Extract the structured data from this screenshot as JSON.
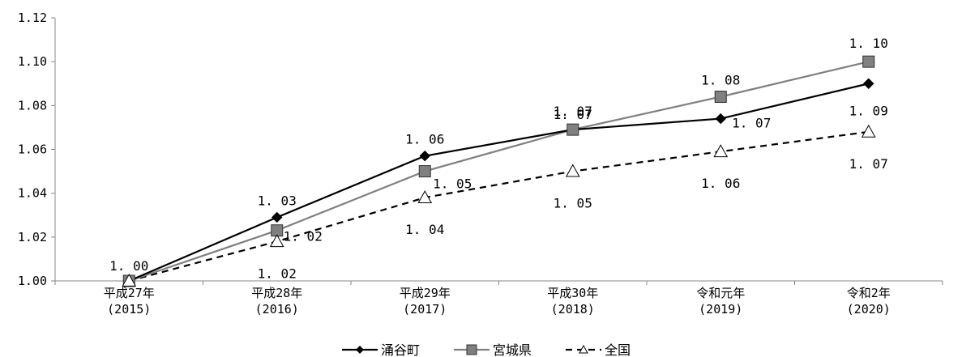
{
  "chart_data": {
    "type": "line",
    "title": "",
    "xlabel": "",
    "ylabel": "",
    "ylim": [
      1.0,
      1.12
    ],
    "yticks": [
      "1.00",
      "1.02",
      "1.04",
      "1.06",
      "1.08",
      "1.10",
      "1.12"
    ],
    "grid": false,
    "legend_position": "bottom",
    "categories": [
      {
        "line1": "平成27年",
        "line2": "(2015)"
      },
      {
        "line1": "平成28年",
        "line2": "(2016)"
      },
      {
        "line1": "平成29年",
        "line2": "(2017)"
      },
      {
        "line1": "平成30年",
        "line2": "(2018)"
      },
      {
        "line1": "令和元年",
        "line2": "(2019)"
      },
      {
        "line1": "令和2年",
        "line2": "(2020)"
      }
    ],
    "series": [
      {
        "name": "涌谷町",
        "values": [
          1.0,
          1.029,
          1.057,
          1.069,
          1.074,
          1.09
        ],
        "labels": [
          "1.00",
          "1.03",
          "1.06",
          "1.07",
          "1.07",
          "1.09"
        ],
        "color": "#000000",
        "dash": "solid",
        "marker": "diamond"
      },
      {
        "name": "宮城県",
        "values": [
          1.0,
          1.023,
          1.05,
          1.069,
          1.084,
          1.1
        ],
        "labels": [
          "",
          "1.02",
          "1.05",
          "1.07",
          "1.08",
          "1.10"
        ],
        "color": "#808080",
        "dash": "solid",
        "marker": "square"
      },
      {
        "name": "全国",
        "values": [
          1.0,
          1.018,
          1.038,
          1.05,
          1.059,
          1.068
        ],
        "labels": [
          "",
          "1.02",
          "1.04",
          "1.05",
          "1.06",
          "1.07"
        ],
        "color": "#000000",
        "dash": "dashed",
        "marker": "triangle"
      }
    ]
  }
}
